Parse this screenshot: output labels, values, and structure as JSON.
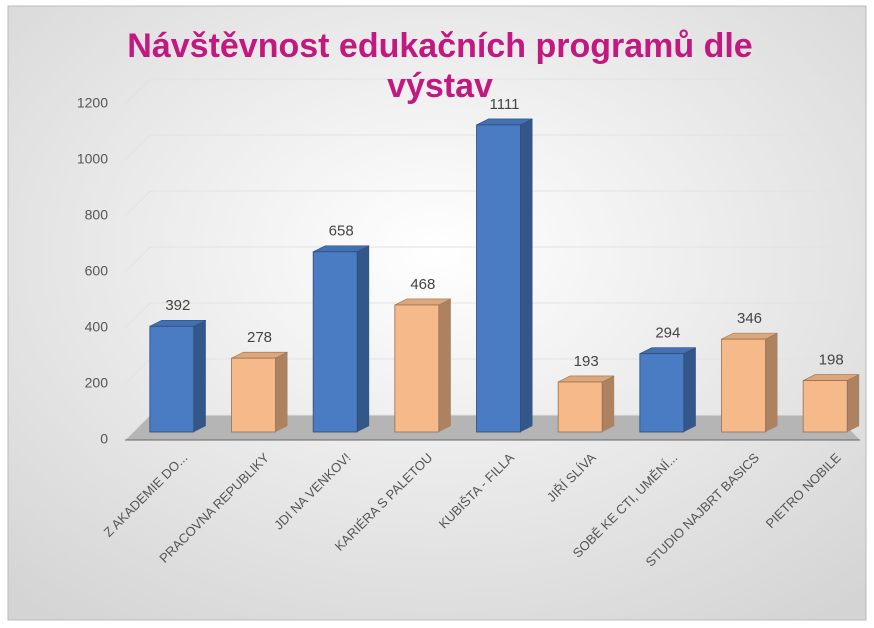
{
  "chart_data": {
    "type": "bar3d",
    "title": "Návštěvnost edukačních programů dle výstav",
    "categories": [
      "Z AKADEMIE DO...",
      "PRACOVNA REPUBLIKY",
      "JDI NA VENKOV!",
      "KARIÉRA S PALETOU",
      "KUBIŠTA - FILLA",
      "JIŘÍ SLÍVA",
      "SOBĚ KE CTI, UMĚNÍ...",
      "STUDIO NAJBRT BASICS",
      "PIETRO NOBILE"
    ],
    "values": [
      392,
      278,
      658,
      468,
      1111,
      193,
      294,
      346,
      198
    ],
    "colors": [
      "#4a7cc4",
      "#f6b98a",
      "#4a7cc4",
      "#f6b98a",
      "#4a7cc4",
      "#f6b98a",
      "#4a7cc4",
      "#f6b98a",
      "#f6b98a"
    ],
    "ylim": [
      0,
      1200
    ],
    "yticks": [
      0,
      200,
      400,
      600,
      800,
      1000,
      1200
    ],
    "grid": true
  }
}
